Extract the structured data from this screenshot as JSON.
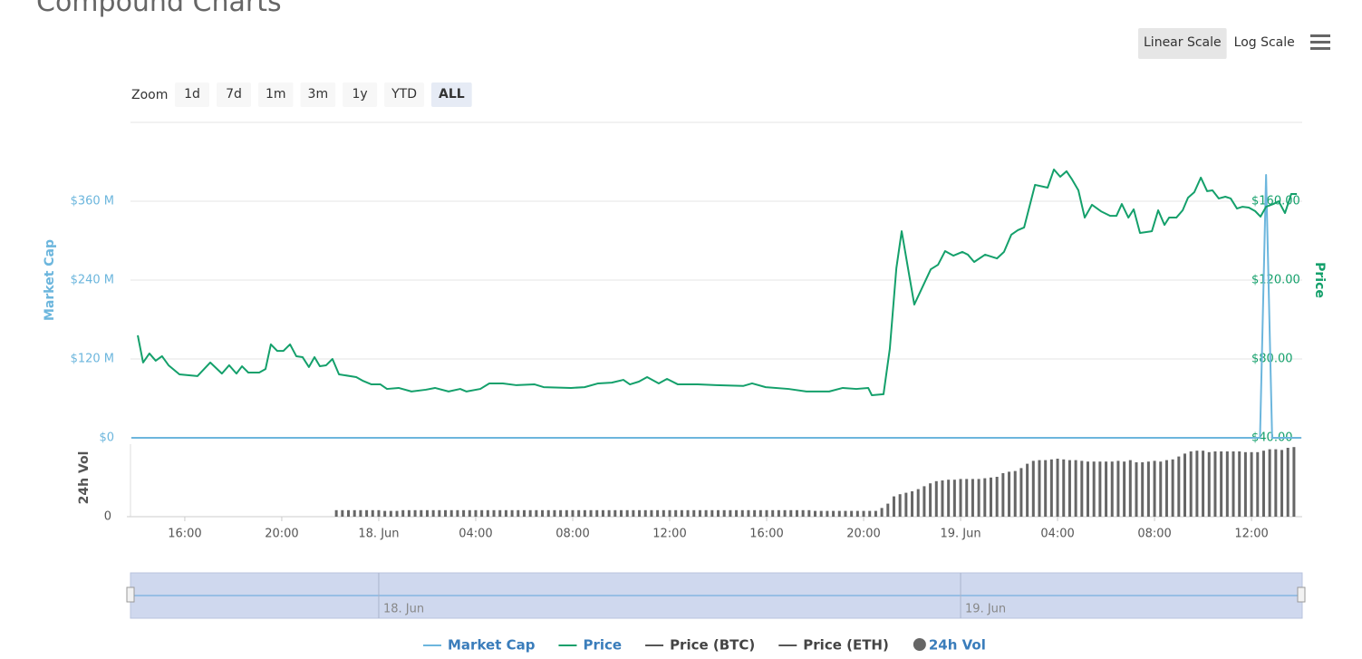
{
  "title": "Compound Charts",
  "controls": {
    "scale_buttons": [
      "Linear Scale",
      "Log Scale"
    ],
    "selected_scale": 0,
    "zoom_label": "Zoom",
    "zoom_buttons": [
      "1d",
      "7d",
      "1m",
      "3m",
      "1y",
      "YTD",
      "ALL"
    ],
    "selected_zoom": 6
  },
  "chart_data": [
    {
      "type": "line",
      "grid": true,
      "xlim": [
        -10.24,
        38.09
      ],
      "ylim": [
        0,
        480000000
      ],
      "yticks": [
        {
          "value": 0,
          "label": "$0"
        },
        {
          "value": 120000000,
          "label": "$120 M"
        },
        {
          "value": 240000000,
          "label": "$240 M"
        },
        {
          "value": 360000000,
          "label": "$360 M"
        }
      ],
      "y_label": "Market Cap",
      "y2lim": [
        40,
        200
      ],
      "y2ticks": [
        {
          "value": 40,
          "label": "$40.00"
        },
        {
          "value": 80,
          "label": "$80.00"
        },
        {
          "value": 120,
          "label": "$120.00"
        },
        {
          "value": 160,
          "label": "$160.00"
        }
      ],
      "y2_label": "Price",
      "series": [
        {
          "name": "Market Cap",
          "color": "#6cb6dd",
          "visible": true,
          "x": [
            -10.2,
            36.35,
            36.6,
            36.85,
            38.05
          ],
          "values": [
            0,
            0,
            400000000,
            0,
            0
          ]
        },
        {
          "name": "Price",
          "color": "#14a06b",
          "axis": "y2",
          "visible": true,
          "x": [
            -9.94,
            -9.72,
            -9.46,
            -9.2,
            -8.94,
            -8.67,
            -8.22,
            -7.48,
            -6.95,
            -6.47,
            -6.17,
            -5.87,
            -5.64,
            -5.38,
            -4.93,
            -4.67,
            -4.45,
            -4.19,
            -3.93,
            -3.66,
            -3.4,
            -3.14,
            -2.88,
            -2.65,
            -2.43,
            -2.17,
            -1.91,
            -1.64,
            -0.93,
            -0.67,
            -0.3,
            0.07,
            0.34,
            0.82,
            1.35,
            1.94,
            2.32,
            2.88,
            3.36,
            3.62,
            4.19,
            4.56,
            5.12,
            5.68,
            6.43,
            6.8,
            7.93,
            8.49,
            9.05,
            9.61,
            10.09,
            10.36,
            10.73,
            11.07,
            11.55,
            11.89,
            12.34,
            13.16,
            13.91,
            15.03,
            15.4,
            15.96,
            16.9,
            17.64,
            18.58,
            19.14,
            19.7,
            20.19,
            20.34,
            20.82,
            21.08,
            21.35,
            21.57,
            21.87,
            22.09,
            22.77,
            23.07,
            23.36,
            23.7,
            24.07,
            24.3,
            24.56,
            25.01,
            25.5,
            25.79,
            26.09,
            26.36,
            26.62,
            27.07,
            27.59,
            27.85,
            28.11,
            28.37,
            28.6,
            28.86,
            29.12,
            29.42,
            29.79,
            30.17,
            30.43,
            30.65,
            30.92,
            31.14,
            31.4,
            31.89,
            32.15,
            32.41,
            32.6,
            32.9,
            33.16,
            33.38,
            33.64,
            33.91,
            34.17,
            34.39,
            34.65,
            34.92,
            35.14,
            35.4,
            35.63,
            35.89,
            36.15,
            36.37,
            36.6,
            36.9,
            37.12,
            37.38,
            37.64,
            37.87
          ],
          "values": [
            92,
            78.2,
            82.8,
            79.1,
            81.4,
            76.8,
            72.2,
            71.3,
            78.2,
            72.6,
            76.8,
            72.6,
            76.3,
            73.1,
            73.1,
            74.9,
            87.4,
            84.1,
            84.1,
            87.4,
            81.4,
            80.9,
            75.9,
            80.9,
            76.3,
            76.8,
            80,
            72.2,
            70.8,
            69,
            67.1,
            67.1,
            64.8,
            65.3,
            63.5,
            64.4,
            65.3,
            63.5,
            64.8,
            63.5,
            64.8,
            67.6,
            67.6,
            66.7,
            67.1,
            65.7,
            65.3,
            65.7,
            67.6,
            68,
            69.4,
            67.1,
            68.5,
            70.8,
            67.6,
            69.9,
            67.1,
            67.1,
            66.7,
            66.3,
            67.6,
            65.7,
            64.8,
            63.5,
            63.5,
            65.3,
            64.8,
            65.3,
            61.6,
            62.1,
            85.1,
            126,
            144.8,
            123.2,
            107.6,
            125.5,
            127.8,
            134.7,
            132.4,
            134.3,
            132.9,
            129.2,
            132.9,
            131,
            134.3,
            143,
            145.3,
            146.7,
            168.3,
            166.9,
            176.1,
            172.4,
            175.2,
            171,
            165.5,
            151.7,
            158.2,
            154.9,
            152.6,
            152.6,
            158.6,
            151.7,
            155.9,
            143.9,
            144.8,
            155.4,
            148,
            151.7,
            151.7,
            155.4,
            161.8,
            164.6,
            172,
            165.1,
            165.5,
            161.4,
            162.3,
            161.4,
            156.3,
            157.2,
            156.8,
            155,
            152.2,
            157.2,
            158.6,
            160,
            154,
            163.7,
            163.7
          ]
        },
        {
          "name": "Price (BTC)",
          "color": "#555555",
          "visible": false,
          "x": [],
          "values": []
        },
        {
          "name": "Price (ETH)",
          "color": "#555555",
          "visible": false,
          "x": [],
          "values": []
        }
      ]
    },
    {
      "type": "bar",
      "xlim": [
        -10.24,
        38.09
      ],
      "xticks": [
        {
          "value": -8,
          "label": "16:00"
        },
        {
          "value": -4,
          "label": "20:00"
        },
        {
          "value": 0,
          "label": "18. Jun"
        },
        {
          "value": 4,
          "label": "04:00"
        },
        {
          "value": 8,
          "label": "08:00"
        },
        {
          "value": 12,
          "label": "12:00"
        },
        {
          "value": 16,
          "label": "16:00"
        },
        {
          "value": 20,
          "label": "20:00"
        },
        {
          "value": 24,
          "label": "19. Jun"
        },
        {
          "value": 28,
          "label": "04:00"
        },
        {
          "value": 32,
          "label": "08:00"
        },
        {
          "value": 36,
          "label": "12:00"
        }
      ],
      "ylim": [
        0,
        100
      ],
      "yticks": [
        0
      ],
      "y_label": "24h Vol",
      "series": [
        {
          "name": "24h Vol",
          "color": "#666666",
          "visible": true,
          "x": [
            -1.75,
            -1.5,
            -1.25,
            -1,
            -0.75,
            -0.5,
            -0.25,
            0,
            0.25,
            0.5,
            0.75,
            1,
            1.25,
            1.5,
            1.75,
            2,
            2.25,
            2.5,
            2.75,
            3,
            3.25,
            3.5,
            3.75,
            4,
            4.25,
            4.5,
            4.75,
            5,
            5.25,
            5.5,
            5.75,
            6,
            6.25,
            6.5,
            6.75,
            7,
            7.25,
            7.5,
            7.75,
            8,
            8.25,
            8.5,
            8.75,
            9,
            9.25,
            9.5,
            9.75,
            10,
            10.25,
            10.5,
            10.75,
            11,
            11.25,
            11.5,
            11.75,
            12,
            12.25,
            12.5,
            12.75,
            13,
            13.25,
            13.5,
            13.75,
            14,
            14.25,
            14.5,
            14.75,
            15,
            15.25,
            15.5,
            15.75,
            16,
            16.25,
            16.5,
            16.75,
            17,
            17.25,
            17.5,
            17.75,
            18,
            18.25,
            18.5,
            18.75,
            19,
            19.25,
            19.5,
            19.75,
            20,
            20.25,
            20.5,
            20.75,
            21,
            21.25,
            21.5,
            21.75,
            22,
            22.25,
            22.5,
            22.75,
            23,
            23.25,
            23.5,
            23.75,
            24,
            24.25,
            24.5,
            24.75,
            25,
            25.25,
            25.5,
            25.75,
            26,
            26.25,
            26.5,
            26.75,
            27,
            27.25,
            27.5,
            27.75,
            28,
            28.25,
            28.5,
            28.75,
            29,
            29.25,
            29.5,
            29.75,
            30,
            30.25,
            30.5,
            30.75,
            31,
            31.25,
            31.5,
            31.75,
            32,
            32.25,
            32.5,
            32.75,
            33,
            33.25,
            33.5,
            33.75,
            34,
            34.25,
            34.5,
            34.75,
            35,
            35.25,
            35.5,
            35.75,
            36,
            36.25,
            36.5,
            36.75,
            37,
            37.25,
            37.5,
            37.75
          ],
          "values": [
            9,
            9,
            9,
            9,
            9,
            9,
            9,
            9,
            8,
            8,
            8,
            9,
            9,
            9,
            9,
            9,
            9,
            9,
            9,
            9,
            9,
            9,
            9,
            9,
            9,
            9,
            9,
            9,
            9,
            9,
            9,
            9,
            9,
            9,
            9,
            9,
            9,
            9,
            9,
            9,
            9,
            9,
            9,
            9,
            9,
            9,
            9,
            9,
            9,
            9,
            9,
            9,
            9,
            9,
            9,
            9,
            9,
            9,
            9,
            9,
            9,
            9,
            9,
            9,
            9,
            9,
            9,
            9,
            9,
            9,
            9,
            9,
            9,
            9,
            9,
            9,
            9,
            9,
            9,
            8,
            8,
            8,
            8,
            8,
            8,
            8,
            8,
            8,
            8,
            8,
            12,
            18,
            28,
            31,
            33,
            35,
            38,
            42,
            46,
            49,
            50,
            51,
            51,
            52,
            52,
            52,
            52,
            53,
            54,
            55,
            60,
            62,
            63,
            67,
            73,
            77,
            78,
            78,
            79,
            80,
            79,
            78,
            78,
            77,
            76,
            76,
            76,
            76,
            76,
            77,
            76,
            78,
            75,
            75,
            76,
            77,
            76,
            78,
            79,
            83,
            87,
            90,
            91,
            91,
            89,
            90,
            90,
            90,
            90,
            90,
            89,
            89,
            89,
            91,
            93,
            93,
            92,
            95,
            96
          ]
        }
      ]
    }
  ],
  "navigator": {
    "xticks": [
      {
        "value": 0,
        "label": "18. Jun"
      },
      {
        "value": 24,
        "label": "19. Jun"
      }
    ]
  }
}
